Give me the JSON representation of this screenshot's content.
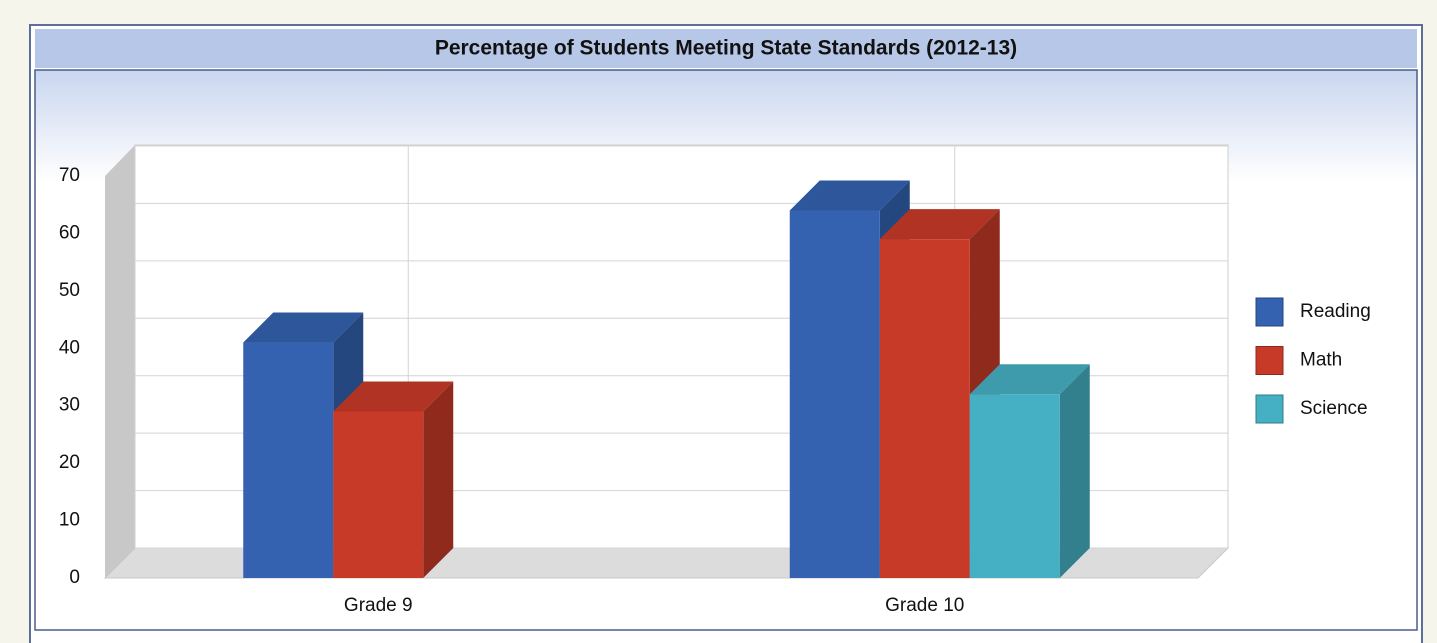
{
  "chart_data": {
    "type": "bar3d",
    "title": "Percentage of Students Meeting State Standards (2012-13)",
    "categories": [
      "Grade 9",
      "Grade 10"
    ],
    "series": [
      {
        "name": "Reading",
        "color": "#3462b0",
        "values": [
          41,
          64
        ]
      },
      {
        "name": "Math",
        "color": "#c83a28",
        "values": [
          29,
          59
        ]
      },
      {
        "name": "Science",
        "color": "#45b0c4",
        "values": [
          null,
          32
        ]
      }
    ],
    "ylim": [
      0,
      70
    ],
    "yticks": [
      0,
      10,
      20,
      30,
      40,
      50,
      60,
      70
    ],
    "grid": true,
    "legend": "right"
  }
}
